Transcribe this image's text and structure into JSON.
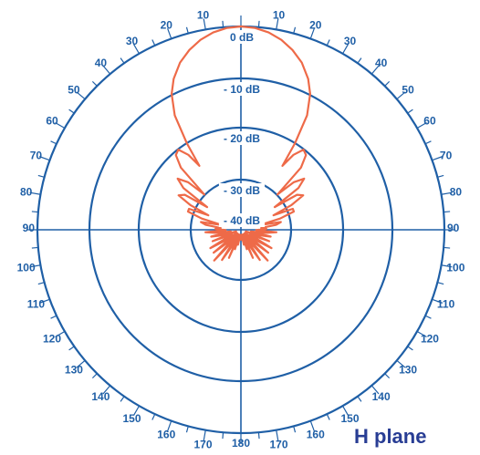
{
  "chart_data": {
    "type": "polar",
    "title": "H plane",
    "radial_unit": "dB",
    "radial_range": [
      -40,
      0
    ],
    "radial_rings": [
      0,
      -10,
      -20,
      -30,
      -40
    ],
    "ring_labels": [
      "0 dB",
      "- 10 dB",
      "- 20 dB",
      "- 30 dB",
      "- 40 dB"
    ],
    "angle_ticks": {
      "step": 5,
      "labels": [
        {
          "angle": 10,
          "text": "10"
        },
        {
          "angle": 20,
          "text": "20"
        },
        {
          "angle": 30,
          "text": "30"
        },
        {
          "angle": 40,
          "text": "40"
        },
        {
          "angle": 50,
          "text": "50"
        },
        {
          "angle": 60,
          "text": "60"
        },
        {
          "angle": 70,
          "text": "70"
        },
        {
          "angle": 80,
          "text": "80"
        },
        {
          "angle": 90,
          "text": "90"
        },
        {
          "angle": 100,
          "text": "100"
        },
        {
          "angle": 110,
          "text": "110"
        },
        {
          "angle": 120,
          "text": "120"
        },
        {
          "angle": 130,
          "text": "130"
        },
        {
          "angle": 140,
          "text": "140"
        },
        {
          "angle": 150,
          "text": "150"
        },
        {
          "angle": 160,
          "text": "160"
        },
        {
          "angle": 170,
          "text": "170"
        },
        {
          "angle": 180,
          "text": "180"
        },
        {
          "angle": -170,
          "text": "170"
        },
        {
          "angle": -160,
          "text": "160"
        },
        {
          "angle": -150,
          "text": "150"
        },
        {
          "angle": -140,
          "text": "140"
        },
        {
          "angle": -130,
          "text": "130"
        },
        {
          "angle": -120,
          "text": "120"
        },
        {
          "angle": -110,
          "text": "110"
        },
        {
          "angle": -100,
          "text": "100"
        },
        {
          "angle": -90,
          "text": "90"
        },
        {
          "angle": -80,
          "text": "80"
        },
        {
          "angle": -70,
          "text": "70"
        },
        {
          "angle": -60,
          "text": "60"
        },
        {
          "angle": -50,
          "text": "50"
        },
        {
          "angle": -40,
          "text": "40"
        },
        {
          "angle": -30,
          "text": "30"
        },
        {
          "angle": -20,
          "text": "20"
        },
        {
          "angle": -10,
          "text": "10"
        }
      ]
    },
    "series": [
      {
        "color": "#ee6a48",
        "points": [
          [
            0,
            0
          ],
          [
            4,
            -0.2
          ],
          [
            8,
            -0.8
          ],
          [
            12,
            -1.8
          ],
          [
            16,
            -3.2
          ],
          [
            20,
            -5
          ],
          [
            24,
            -7.5
          ],
          [
            27,
            -10
          ],
          [
            30,
            -14
          ],
          [
            32,
            -20
          ],
          [
            33,
            -25
          ],
          [
            35,
            -22
          ],
          [
            38,
            -20
          ],
          [
            41,
            -20.5
          ],
          [
            44,
            -23
          ],
          [
            46,
            -30
          ],
          [
            48,
            -26
          ],
          [
            51,
            -24
          ],
          [
            54,
            -26
          ],
          [
            56,
            -32
          ],
          [
            58,
            -27
          ],
          [
            61,
            -26
          ],
          [
            64,
            -29
          ],
          [
            66,
            -33
          ],
          [
            68,
            -29
          ],
          [
            71,
            -29
          ],
          [
            74,
            -32
          ],
          [
            76,
            -36
          ],
          [
            79,
            -32
          ],
          [
            82,
            -33
          ],
          [
            85,
            -36
          ],
          [
            88,
            -35
          ],
          [
            91,
            -37
          ],
          [
            94,
            -33
          ],
          [
            97,
            -35
          ],
          [
            100,
            -38
          ],
          [
            103,
            -34
          ],
          [
            106,
            -36
          ],
          [
            109,
            -39
          ],
          [
            112,
            -34
          ],
          [
            115,
            -37
          ],
          [
            118,
            -38
          ],
          [
            121,
            -33
          ],
          [
            124,
            -36
          ],
          [
            127,
            -39
          ],
          [
            130,
            -33
          ],
          [
            133,
            -36
          ],
          [
            136,
            -39
          ],
          [
            139,
            -32
          ],
          [
            142,
            -36
          ],
          [
            145,
            -39
          ],
          [
            148,
            -33
          ],
          [
            151,
            -36
          ],
          [
            154,
            -39
          ],
          [
            157,
            -34
          ],
          [
            160,
            -38
          ],
          [
            163,
            -36
          ],
          [
            166,
            -39
          ],
          [
            169,
            -37
          ],
          [
            172,
            -39
          ],
          [
            175,
            -38
          ],
          [
            180,
            -39
          ],
          [
            -175,
            -38
          ],
          [
            -172,
            -39
          ],
          [
            -169,
            -37
          ],
          [
            -166,
            -39
          ],
          [
            -163,
            -36
          ],
          [
            -160,
            -38
          ],
          [
            -157,
            -34
          ],
          [
            -154,
            -39
          ],
          [
            -151,
            -36
          ],
          [
            -148,
            -33
          ],
          [
            -145,
            -39
          ],
          [
            -142,
            -36
          ],
          [
            -139,
            -32
          ],
          [
            -136,
            -39
          ],
          [
            -133,
            -36
          ],
          [
            -130,
            -33
          ],
          [
            -127,
            -39
          ],
          [
            -124,
            -36
          ],
          [
            -121,
            -33
          ],
          [
            -118,
            -38
          ],
          [
            -115,
            -37
          ],
          [
            -112,
            -34
          ],
          [
            -109,
            -39
          ],
          [
            -106,
            -36
          ],
          [
            -103,
            -34
          ],
          [
            -100,
            -38
          ],
          [
            -97,
            -35
          ],
          [
            -94,
            -33
          ],
          [
            -91,
            -37
          ],
          [
            -88,
            -35
          ],
          [
            -85,
            -36
          ],
          [
            -82,
            -33
          ],
          [
            -79,
            -32
          ],
          [
            -76,
            -36
          ],
          [
            -74,
            -32
          ],
          [
            -71,
            -29
          ],
          [
            -68,
            -29
          ],
          [
            -66,
            -33
          ],
          [
            -64,
            -29
          ],
          [
            -61,
            -26
          ],
          [
            -58,
            -27
          ],
          [
            -56,
            -32
          ],
          [
            -54,
            -26
          ],
          [
            -51,
            -24
          ],
          [
            -48,
            -26
          ],
          [
            -46,
            -30
          ],
          [
            -44,
            -23
          ],
          [
            -41,
            -20.5
          ],
          [
            -38,
            -20
          ],
          [
            -35,
            -22
          ],
          [
            -33,
            -25
          ],
          [
            -32,
            -20
          ],
          [
            -30,
            -14
          ],
          [
            -27,
            -10
          ],
          [
            -24,
            -7.5
          ],
          [
            -20,
            -5
          ],
          [
            -16,
            -3.2
          ],
          [
            -12,
            -1.8
          ],
          [
            -8,
            -0.8
          ],
          [
            -4,
            -0.2
          ],
          [
            0,
            0
          ]
        ]
      }
    ],
    "colors": {
      "grid": "#1f5fa6",
      "trace": "#ee6a48",
      "title": "#283d94"
    }
  }
}
